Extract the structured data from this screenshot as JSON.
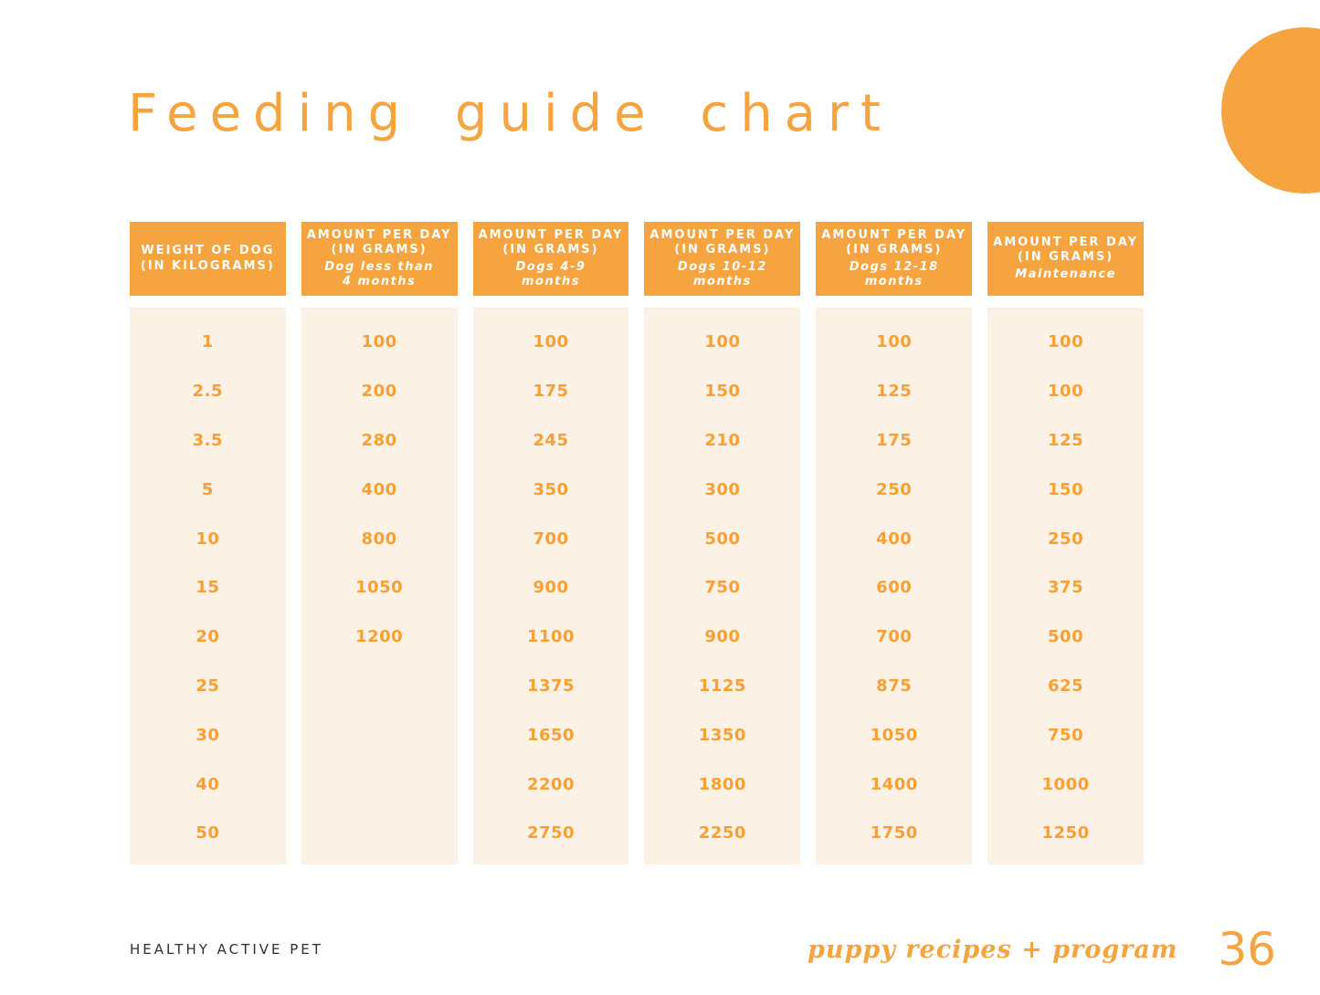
{
  "page": {
    "title": "Feeding guide chart",
    "footer_left": "HEALTHY ACTIVE PET",
    "footer_right": "puppy recipes + program",
    "page_number": "36"
  },
  "colors": {
    "accent_orange": "#F5A43F",
    "cell_cream": "#FCF1E5",
    "number_orange": "#F7A033",
    "footer_dark": "#2E2E2E"
  },
  "table": {
    "columns": [
      {
        "header_line1": "WEIGHT OF DOG",
        "header_line2": "(IN KILOGRAMS)",
        "subtitle": "",
        "values": [
          "1",
          "2.5",
          "3.5",
          "5",
          "10",
          "15",
          "20",
          "25",
          "30",
          "40",
          "50"
        ]
      },
      {
        "header_line1": "AMOUNT PER DAY",
        "header_line2": "(IN GRAMS)",
        "subtitle": "Dog less than\n4 months",
        "values": [
          "100",
          "200",
          "280",
          "400",
          "800",
          "1050",
          "1200",
          "",
          "",
          "",
          ""
        ]
      },
      {
        "header_line1": "AMOUNT PER DAY",
        "header_line2": "(IN GRAMS)",
        "subtitle": "Dogs 4-9\nmonths",
        "values": [
          "100",
          "175",
          "245",
          "350",
          "700",
          "900",
          "1100",
          "1375",
          "1650",
          "2200",
          "2750"
        ]
      },
      {
        "header_line1": "AMOUNT PER DAY",
        "header_line2": "(IN GRAMS)",
        "subtitle": "Dogs 10-12\nmonths",
        "values": [
          "100",
          "150",
          "210",
          "300",
          "500",
          "750",
          "900",
          "1125",
          "1350",
          "1800",
          "2250"
        ]
      },
      {
        "header_line1": "AMOUNT PER DAY",
        "header_line2": "(IN GRAMS)",
        "subtitle": "Dogs 12-18\nmonths",
        "values": [
          "100",
          "125",
          "175",
          "250",
          "400",
          "600",
          "700",
          "875",
          "1050",
          "1400",
          "1750"
        ]
      },
      {
        "header_line1": "AMOUNT PER DAY",
        "header_line2": "(IN GRAMS)",
        "subtitle": "Maintenance",
        "values": [
          "100",
          "100",
          "125",
          "150",
          "250",
          "375",
          "500",
          "625",
          "750",
          "1000",
          "1250"
        ]
      }
    ]
  },
  "chart_data": {
    "type": "table",
    "title": "Feeding guide chart",
    "columns": [
      "Weight of dog (in kilograms)",
      "Amount per day (in grams) - Dog less than 4 months",
      "Amount per day (in grams) - Dogs 4-9 months",
      "Amount per day (in grams) - Dogs 10-12 months",
      "Amount per day (in grams) - Dogs 12-18 months",
      "Amount per day (in grams) - Maintenance"
    ],
    "rows": [
      [
        1,
        100,
        100,
        100,
        100,
        100
      ],
      [
        2.5,
        200,
        175,
        150,
        125,
        100
      ],
      [
        3.5,
        280,
        245,
        210,
        175,
        125
      ],
      [
        5,
        400,
        350,
        300,
        250,
        150
      ],
      [
        10,
        800,
        700,
        500,
        400,
        250
      ],
      [
        15,
        1050,
        900,
        750,
        600,
        375
      ],
      [
        20,
        1200,
        1100,
        900,
        700,
        500
      ],
      [
        25,
        null,
        1375,
        1125,
        875,
        625
      ],
      [
        30,
        null,
        1650,
        1350,
        1050,
        750
      ],
      [
        40,
        null,
        2200,
        1800,
        1400,
        1000
      ],
      [
        50,
        null,
        2750,
        2250,
        1750,
        1250
      ]
    ]
  }
}
